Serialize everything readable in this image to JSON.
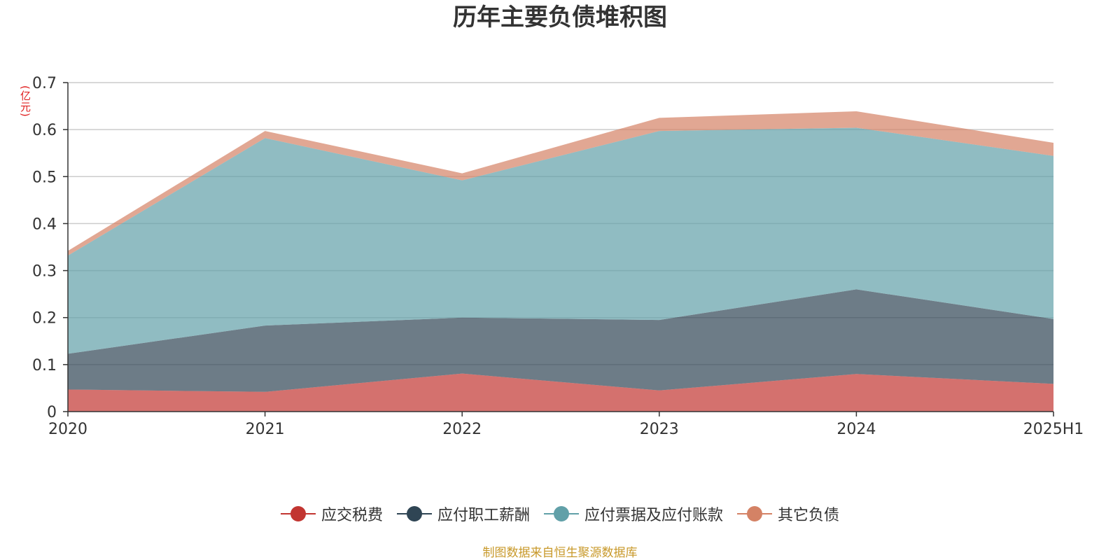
{
  "chart_data": {
    "type": "area",
    "stacked": true,
    "title": "历年主要负债堆积图",
    "ylabel": "(亿元)",
    "xlabel": "",
    "categories": [
      "2020",
      "2021",
      "2022",
      "2023",
      "2024",
      "2025H1"
    ],
    "ylim": [
      0,
      0.7
    ],
    "yticks": [
      0,
      0.1,
      0.2,
      0.3,
      0.4,
      0.5,
      0.6,
      0.7
    ],
    "ytick_labels": [
      "0",
      "0.1",
      "0.2",
      "0.3",
      "0.4",
      "0.5",
      "0.6",
      "0.7"
    ],
    "grid": true,
    "legend_position": "bottom",
    "series": [
      {
        "name": "应交税费",
        "color": "#c23531",
        "values": [
          0.047,
          0.042,
          0.081,
          0.045,
          0.08,
          0.059
        ]
      },
      {
        "name": "应付职工薪酬",
        "color": "#2f4554",
        "values": [
          0.076,
          0.141,
          0.119,
          0.15,
          0.18,
          0.138
        ]
      },
      {
        "name": "应付票据及应付账款",
        "color": "#61a0a8",
        "values": [
          0.209,
          0.399,
          0.292,
          0.402,
          0.344,
          0.347
        ]
      },
      {
        "name": "其它负债",
        "color": "#d48265",
        "values": [
          0.01,
          0.015,
          0.015,
          0.028,
          0.035,
          0.028
        ]
      }
    ]
  },
  "source_note": "制图数据来自恒生聚源数据库"
}
